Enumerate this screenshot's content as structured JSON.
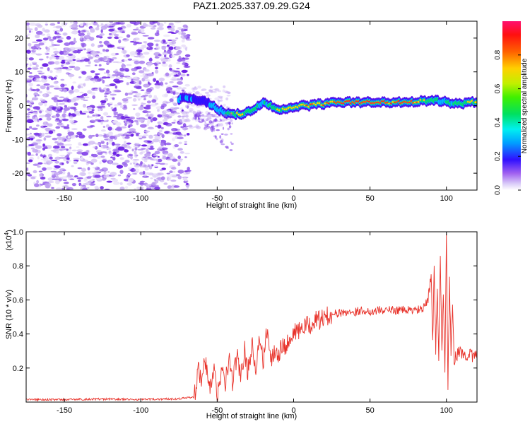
{
  "figure_title": "PAZ1.2025.337.09.29.G24",
  "chart_data": [
    {
      "type": "heatmap",
      "xlabel": "Height of straight line (km)",
      "ylabel": "Frequency (Hz)",
      "xlim": [
        -175,
        120
      ],
      "ylim": [
        -25,
        25
      ],
      "xticks": [
        -150,
        -100,
        -50,
        0,
        50,
        100
      ],
      "yticks": [
        -20,
        -10,
        0,
        10,
        20
      ],
      "noise_region_x": [
        -175,
        -70
      ],
      "ridge": {
        "x": [
          -75,
          -70,
          -65,
          -60,
          -55,
          -50,
          -45,
          -40,
          -35,
          -30,
          -25,
          -20,
          -15,
          -10,
          -5,
          0,
          5,
          10,
          15,
          20,
          25,
          30,
          40,
          50,
          60,
          70,
          80,
          90,
          95,
          100,
          105,
          110,
          115,
          120
        ],
        "y": [
          2,
          2.5,
          2,
          1.5,
          0.5,
          -1,
          -2,
          -2.5,
          -2.5,
          -2,
          -1,
          1,
          0,
          -1.5,
          -1,
          -0.5,
          0,
          0,
          0.5,
          0.5,
          0.8,
          1,
          1,
          1,
          1,
          1,
          1.2,
          1.5,
          1.5,
          1.0,
          0.5,
          0.5,
          1.0,
          1.0
        ],
        "amplitude": [
          0.3,
          0.35,
          0.35,
          0.3,
          0.35,
          0.4,
          0.5,
          0.7,
          0.75,
          0.6,
          0.55,
          0.45,
          0.5,
          0.7,
          0.75,
          0.75,
          0.8,
          0.8,
          0.8,
          0.85,
          0.88,
          0.9,
          0.92,
          0.92,
          0.9,
          0.88,
          0.85,
          0.6,
          0.5,
          0.45,
          0.55,
          0.6,
          0.75,
          0.7
        ]
      },
      "colorbar": {
        "label": "Normalized spectral amplitude",
        "range": [
          0,
          1
        ],
        "ticks": [
          0.0,
          0.2,
          0.4,
          0.6,
          0.8
        ]
      }
    },
    {
      "type": "line",
      "xlabel": "Height of straight line (km)",
      "ylabel": "SNR (10 * v/v)",
      "y_multiplier": "(x10",
      "y_multiplier_exp": "4",
      "y_multiplier_close": ")",
      "xlim": [
        -175,
        120
      ],
      "ylim": [
        0,
        1.0
      ],
      "xticks": [
        -150,
        -100,
        -50,
        0,
        50,
        100
      ],
      "yticks": [
        0.2,
        0.4,
        0.6,
        0.8,
        1.0
      ],
      "line_color": "#e8322a",
      "series": [
        {
          "name": "SNR",
          "x": [
            -175,
            -150,
            -125,
            -100,
            -75,
            -65,
            -62,
            -60,
            -58,
            -55,
            -52,
            -50,
            -47,
            -45,
            -42,
            -40,
            -37,
            -35,
            -32,
            -30,
            -27,
            -25,
            -22,
            -20,
            -17,
            -15,
            -12,
            -10,
            -7,
            -5,
            -2,
            0,
            5,
            10,
            15,
            20,
            25,
            30,
            35,
            40,
            45,
            50,
            55,
            60,
            65,
            70,
            75,
            80,
            85,
            88,
            90,
            91,
            92,
            93,
            94,
            95,
            96,
            97,
            98,
            99,
            100,
            101,
            102,
            103,
            104,
            105,
            108,
            110,
            115,
            120
          ],
          "y": [
            0.015,
            0.015,
            0.018,
            0.015,
            0.02,
            0.03,
            0.2,
            0.1,
            0.25,
            0.08,
            0.18,
            0.05,
            0.2,
            0.1,
            0.25,
            0.12,
            0.28,
            0.15,
            0.3,
            0.18,
            0.35,
            0.2,
            0.38,
            0.22,
            0.45,
            0.25,
            0.32,
            0.28,
            0.36,
            0.32,
            0.4,
            0.4,
            0.43,
            0.45,
            0.48,
            0.49,
            0.52,
            0.52,
            0.53,
            0.53,
            0.54,
            0.53,
            0.54,
            0.54,
            0.54,
            0.54,
            0.54,
            0.54,
            0.55,
            0.6,
            0.75,
            0.35,
            0.8,
            0.3,
            0.7,
            0.25,
            0.85,
            0.3,
            0.65,
            0.2,
            1.0,
            0.1,
            0.7,
            0.3,
            0.55,
            0.25,
            0.3,
            0.28,
            0.28,
            0.26
          ]
        }
      ]
    }
  ]
}
